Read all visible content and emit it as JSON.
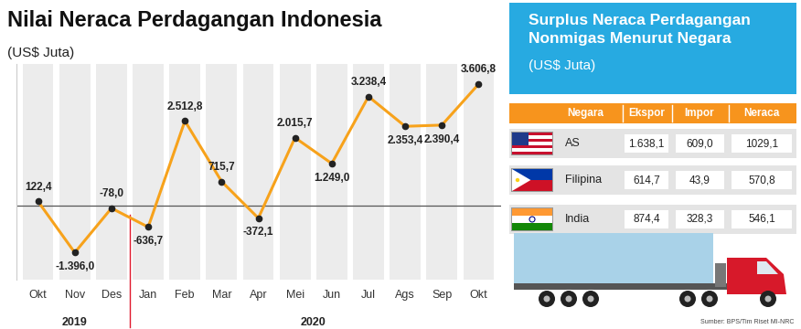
{
  "chart_data": {
    "type": "line",
    "title": "Nilai Neraca Perdagangan Indonesia",
    "subtitle": "(US$ Juta)",
    "categories": [
      "Okt",
      "Nov",
      "Des",
      "Jan",
      "Feb",
      "Mar",
      "Apr",
      "Mei",
      "Jun",
      "Jul",
      "Ags",
      "Sep",
      "Okt"
    ],
    "groups": [
      {
        "label": "2019",
        "count": 3
      },
      {
        "label": "2020",
        "count": 10
      }
    ],
    "values": [
      122.4,
      -1396.0,
      -78.0,
      -636.7,
      2512.8,
      715.7,
      -372.1,
      2015.7,
      1249.0,
      3238.4,
      2353.4,
      2390.4,
      3606.8
    ],
    "value_labels": [
      "122,4",
      "-1.396,0",
      "-78,0",
      "-636,7",
      "2.512,8",
      "715,7",
      "-372,1",
      "2.015,7",
      "1.249,0",
      "3.238,4",
      "2.353,4",
      "2.390,4",
      "3.606,8"
    ],
    "color": "#f7a21b",
    "marker": "o",
    "data_labels": true,
    "tick_labels": "x",
    "ylim": [
      -2200,
      4200
    ],
    "yticks": [],
    "grid": false
  },
  "table": {
    "title": [
      "Surplus Neraca Perdagangan",
      "Nonmigas Menurut Negara"
    ],
    "subtitle": "(US$ Juta)",
    "columns": [
      "Negara",
      "Ekspor",
      "Impor",
      "Neraca"
    ],
    "rows": [
      [
        "AS",
        "1.638,1",
        "609,0",
        "1029,1"
      ],
      [
        "Filipina",
        "614,7",
        "43,9",
        "570,8"
      ],
      [
        "India",
        "874,4",
        "328,3",
        "546,1"
      ]
    ]
  },
  "source": "Sumber: BPS/Tim Riset MI-NRC"
}
